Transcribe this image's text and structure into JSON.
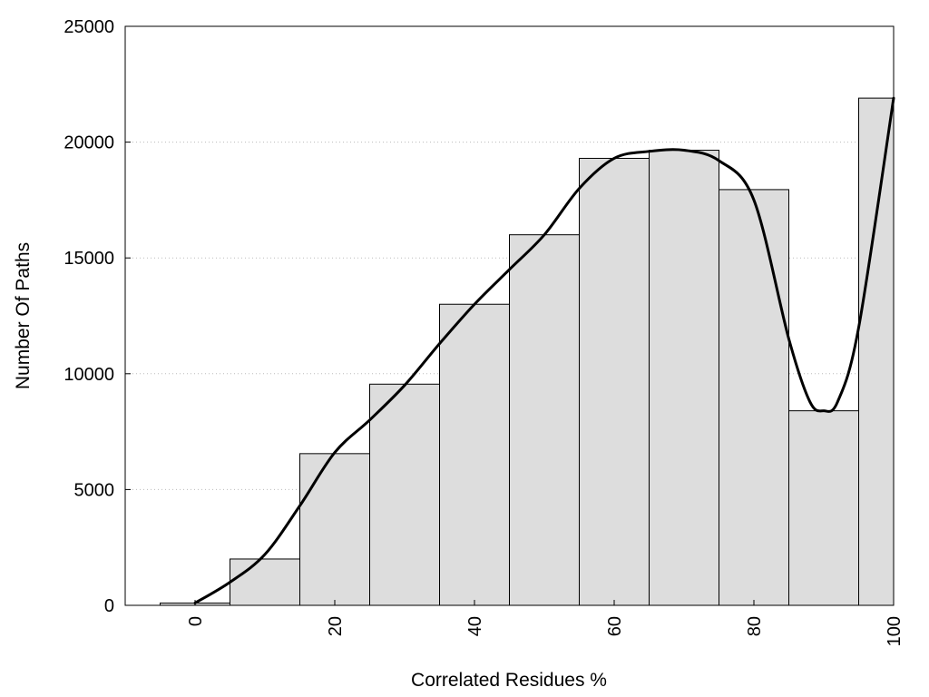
{
  "chart_data": {
    "type": "bar",
    "title": "",
    "xlabel": "Correlated Residues %",
    "ylabel": "Number Of Paths",
    "xlim": [
      -10,
      100
    ],
    "ylim": [
      0,
      25000
    ],
    "grid": "horizontal dotted",
    "legend": "none",
    "bar_width": 10,
    "bars": [
      {
        "x": 0,
        "value": 100
      },
      {
        "x": 10,
        "value": 2000
      },
      {
        "x": 20,
        "value": 6550
      },
      {
        "x": 30,
        "value": 9550
      },
      {
        "x": 40,
        "value": 13000
      },
      {
        "x": 50,
        "value": 16000
      },
      {
        "x": 60,
        "value": 19300
      },
      {
        "x": 70,
        "value": 19650
      },
      {
        "x": 80,
        "value": 17950
      },
      {
        "x": 90,
        "value": 8400
      },
      {
        "x": 100,
        "value": 21900
      }
    ],
    "xticks": [
      0,
      20,
      40,
      60,
      80,
      100
    ],
    "yticks": [
      0,
      5000,
      10000,
      15000,
      20000,
      25000
    ],
    "smooth_curve": {
      "x": [
        0,
        5,
        10,
        15,
        20,
        25,
        30,
        35,
        40,
        45,
        50,
        55,
        60,
        65,
        70,
        75,
        80,
        85,
        88,
        90,
        92,
        95,
        100
      ],
      "y": [
        100,
        1000,
        2200,
        4300,
        6600,
        8000,
        9500,
        11300,
        13000,
        14500,
        16000,
        18000,
        19300,
        19600,
        19650,
        19200,
        17500,
        11500,
        8800,
        8400,
        8800,
        12000,
        21900
      ]
    },
    "colors": {
      "bar_fill": "#dddddd",
      "line": "#000000"
    }
  }
}
